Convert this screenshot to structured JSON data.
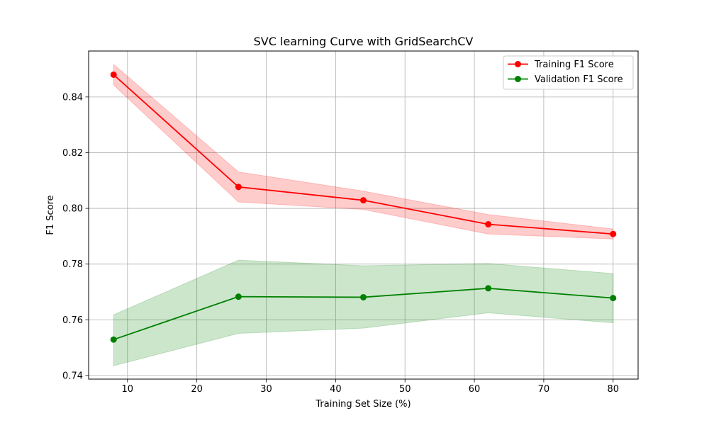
{
  "chart_data": {
    "type": "line",
    "title": "SVC learning Curve with GridSearchCV",
    "xlabel": "Training Set Size (%)",
    "ylabel": "F1 Score",
    "xlim": [
      4.4,
      83.6
    ],
    "ylim": [
      0.7387,
      0.8565
    ],
    "xticks": [
      10,
      20,
      30,
      40,
      50,
      60,
      70,
      80
    ],
    "yticks": [
      0.74,
      0.76,
      0.78,
      0.8,
      0.82,
      0.84
    ],
    "xtick_labels": [
      "10",
      "20",
      "30",
      "40",
      "50",
      "60",
      "70",
      "80"
    ],
    "ytick_labels": [
      "0.74",
      "0.76",
      "0.78",
      "0.80",
      "0.82",
      "0.84"
    ],
    "grid": true,
    "legend_position": "top-right",
    "x": [
      8,
      26,
      44,
      62,
      80
    ],
    "series": [
      {
        "name": "Training F1 Score",
        "color": "#ff0000",
        "band_color": "#ff0000",
        "values": [
          0.848,
          0.8077,
          0.8029,
          0.7943,
          0.7908
        ],
        "upper": [
          0.8517,
          0.8131,
          0.8062,
          0.7978,
          0.7926
        ],
        "lower": [
          0.8443,
          0.8023,
          0.7996,
          0.7908,
          0.789
        ]
      },
      {
        "name": "Validation F1 Score",
        "color": "#008000",
        "band_color": "#008000",
        "values": [
          0.7529,
          0.7683,
          0.7681,
          0.7713,
          0.7678
        ],
        "upper": [
          0.7618,
          0.7814,
          0.7794,
          0.7802,
          0.7766
        ],
        "lower": [
          0.7435,
          0.7551,
          0.757,
          0.7625,
          0.7589
        ]
      }
    ]
  }
}
